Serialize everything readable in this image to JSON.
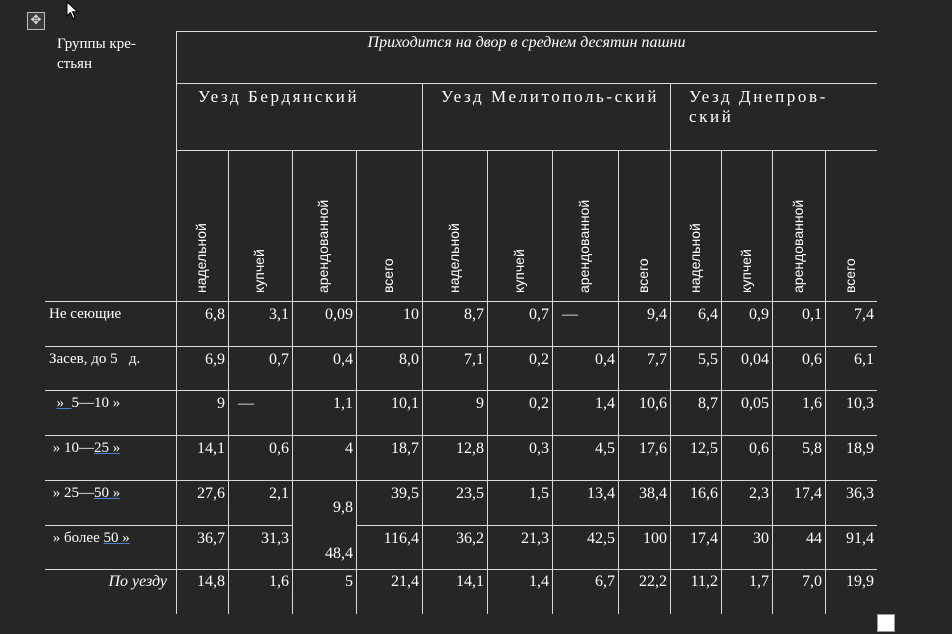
{
  "table": {
    "group_header": "Группы кре-стьян",
    "super_header": "Приходится на двор в среднем десятин пашни",
    "districts": [
      "Уезд Бердянский",
      "Уезд Мелитополь-ский",
      "Уезд Днепров-ский"
    ],
    "subheaders": [
      "надельной",
      "купчей",
      "арендованной",
      "всего"
    ],
    "rows": [
      {
        "label_pre": "Не сеющие",
        "label_u": "",
        "label_post": "",
        "values": [
          "6,8",
          "3,1",
          "0,09",
          "10",
          "8,7",
          "0,7",
          "—",
          "9,4",
          "6,4",
          "0,9",
          "0,1",
          "7,4"
        ]
      },
      {
        "label_pre": "Засев, до 5   д.",
        "label_u": "",
        "label_post": "",
        "values": [
          "6,9",
          "0,7",
          "0,4",
          "8,0",
          "7,1",
          "0,2",
          "0,4",
          "7,7",
          "5,5",
          "0,04",
          "0,6",
          "6,1"
        ]
      },
      {
        "label_pre": "  ",
        "label_u": "»  ",
        "label_post": "5—10 »",
        "values": [
          "9",
          "—",
          "1,1",
          "10,1",
          "9",
          "0,2",
          "1,4",
          "10,6",
          "8,7",
          "0,05",
          "1,6",
          "10,3"
        ]
      },
      {
        "label_pre": " » 10—",
        "label_u": "25 »",
        "label_post": "",
        "values": [
          "14,1",
          "0,6",
          "4",
          "18,7",
          "12,8",
          "0,3",
          "4,5",
          "17,6",
          "12,5",
          "0,6",
          "5,8",
          "18,9"
        ]
      },
      {
        "label_pre": " » 25—",
        "label_u": "50 »",
        "label_post": "",
        "values": [
          "27,6",
          "2,1",
          "",
          "39,5",
          "23,5",
          "1,5",
          "13,4",
          "38,4",
          "16,6",
          "2,3",
          "17,4",
          "36,3"
        ]
      },
      {
        "label_pre": " » более ",
        "label_u": "50 »",
        "label_post": "",
        "values": [
          "36,7",
          "31,3",
          "",
          "116,4",
          "36,2",
          "21,3",
          "42,5",
          "100",
          "17,4",
          "30",
          "44",
          "91,4"
        ]
      }
    ],
    "merged_arend": [
      "9,8",
      "48,4"
    ],
    "total": {
      "label": "По уезду",
      "values": [
        "14,8",
        "1,6",
        "5",
        "21,4",
        "14,1",
        "1,4",
        "6,7",
        "22,2",
        "11,2",
        "1,7",
        "7,0",
        "19,9"
      ]
    }
  }
}
